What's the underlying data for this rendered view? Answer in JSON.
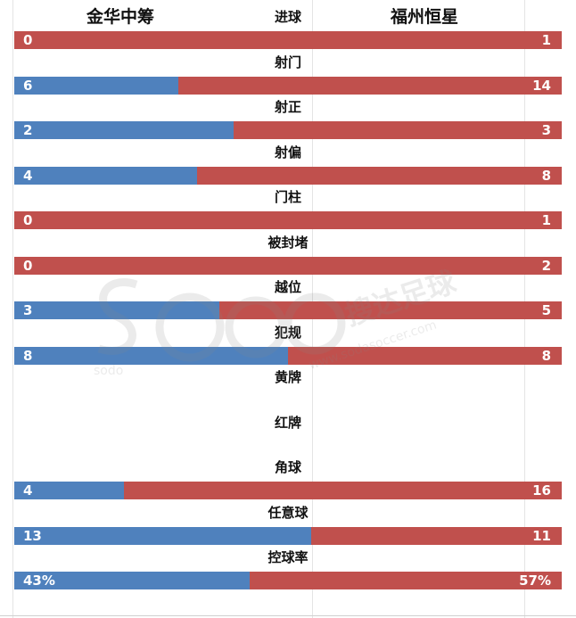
{
  "header": {
    "home_team": "金华中筹",
    "away_team": "福州恒星"
  },
  "watermark": {
    "logo_text": "sodo",
    "brand_cn": "搜达足球",
    "site": "www.sodasoccer.com"
  },
  "colors": {
    "home": "#4f81bd",
    "away": "#c0504d"
  },
  "chart_data": {
    "type": "bar",
    "orientation": "horizontal-stacked-share",
    "series": [
      {
        "name": "金华中筹",
        "color": "#4f81bd"
      },
      {
        "name": "福州恒星",
        "color": "#c0504d"
      }
    ],
    "stats": [
      {
        "label": "进球",
        "home": 0,
        "away": 1,
        "home_text": "0",
        "away_text": "1",
        "has_bar": true
      },
      {
        "label": "射门",
        "home": 6,
        "away": 14,
        "home_text": "6",
        "away_text": "14",
        "has_bar": true
      },
      {
        "label": "射正",
        "home": 2,
        "away": 3,
        "home_text": "2",
        "away_text": "3",
        "has_bar": true
      },
      {
        "label": "射偏",
        "home": 4,
        "away": 8,
        "home_text": "4",
        "away_text": "8",
        "has_bar": true
      },
      {
        "label": "门柱",
        "home": 0,
        "away": 1,
        "home_text": "0",
        "away_text": "1",
        "has_bar": true
      },
      {
        "label": "被封堵",
        "home": 0,
        "away": 2,
        "home_text": "0",
        "away_text": "2",
        "has_bar": true
      },
      {
        "label": "越位",
        "home": 3,
        "away": 5,
        "home_text": "3",
        "away_text": "5",
        "has_bar": true
      },
      {
        "label": "犯规",
        "home": 8,
        "away": 8,
        "home_text": "8",
        "away_text": "8",
        "has_bar": true
      },
      {
        "label": "黄牌",
        "has_bar": false
      },
      {
        "label": "红牌",
        "has_bar": false
      },
      {
        "label": "角球",
        "home": 4,
        "away": 16,
        "home_text": "4",
        "away_text": "16",
        "has_bar": true
      },
      {
        "label": "任意球",
        "home": 13,
        "away": 11,
        "home_text": "13",
        "away_text": "11",
        "has_bar": true
      },
      {
        "label": "控球率",
        "home": 43,
        "away": 57,
        "home_text": "43%",
        "away_text": "57%",
        "has_bar": true
      }
    ]
  }
}
